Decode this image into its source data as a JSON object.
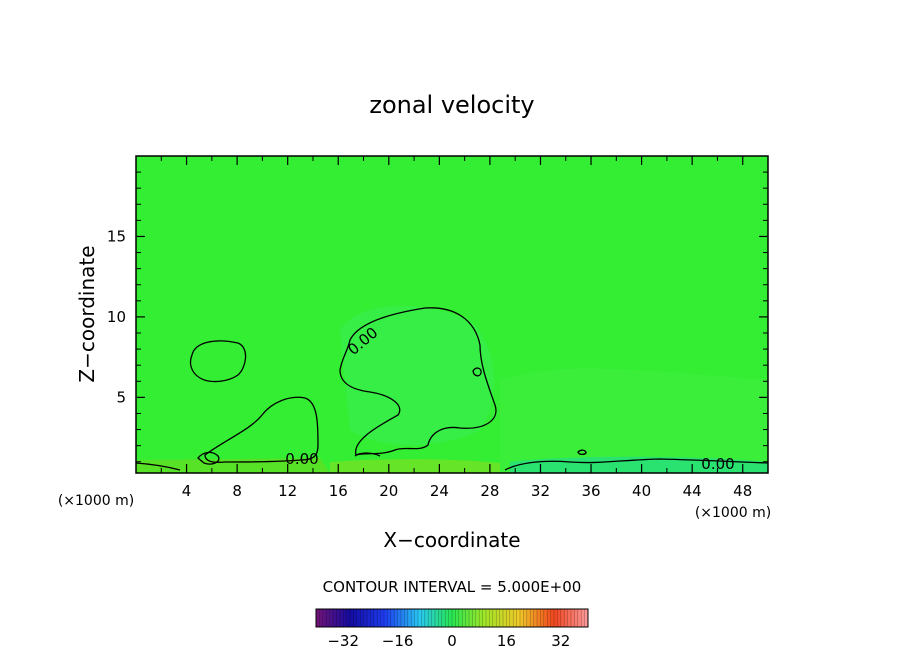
{
  "chart_data": {
    "type": "heatmap",
    "title": "zonal velocity",
    "xlabel": "X−coordinate",
    "ylabel": "Z−coordinate",
    "x_unit_label": "(×1000 m)",
    "z_unit_label": "(×1000 m)",
    "xlim": [
      0,
      50
    ],
    "ylim": [
      0.3,
      20
    ],
    "x_ticks": [
      4,
      8,
      12,
      16,
      20,
      24,
      28,
      32,
      36,
      40,
      44,
      48
    ],
    "y_ticks": [
      5,
      10,
      15
    ],
    "grid": false,
    "contour_interval_text": "CONTOUR INTERVAL = 5.000E+00",
    "contour_labels": [
      "0.00",
      "0.00",
      "0.00"
    ],
    "dominant_value": 0,
    "colorbar": {
      "range": [
        -40,
        40
      ],
      "ticks": [
        -32,
        -16,
        0,
        16,
        32
      ],
      "tick_labels": [
        "−32",
        "−16",
        "0",
        "16",
        "32"
      ]
    },
    "colors": {
      "field_background": "#33ee33",
      "contour_line": "#000000"
    }
  }
}
